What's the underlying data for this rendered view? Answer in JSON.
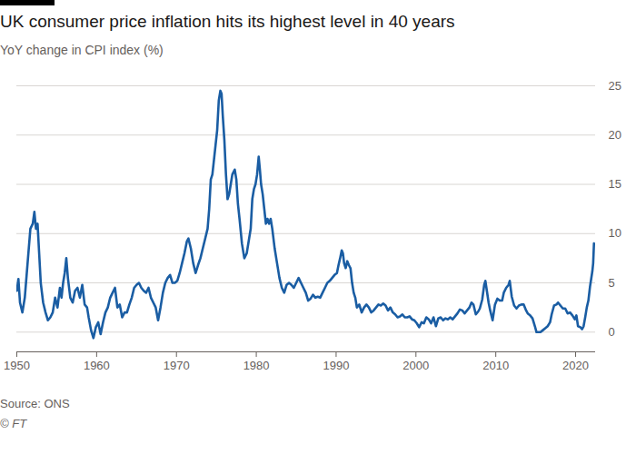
{
  "chart_data": {
    "type": "line",
    "title": "UK consumer price inflation hits its highest level in 40 years",
    "subtitle": "YoY change in CPI index (%)",
    "source": "Source: ONS",
    "credit": "© FT",
    "color": "#1a5da3",
    "grid": true,
    "xlim": [
      1950,
      2022.5
    ],
    "xticks": [
      1950,
      1960,
      1970,
      1980,
      1990,
      2000,
      2010,
      2020
    ],
    "ylim": [
      -2,
      25
    ],
    "yticks": [
      0,
      5,
      10,
      15,
      20,
      25
    ],
    "x": [
      1950,
      1950.2,
      1950.4,
      1950.7,
      1951.0,
      1951.4,
      1951.7,
      1952.0,
      1952.2,
      1952.4,
      1952.6,
      1952.8,
      1953.0,
      1953.3,
      1953.6,
      1953.9,
      1954.2,
      1954.5,
      1954.8,
      1955.1,
      1955.4,
      1955.6,
      1955.8,
      1956.0,
      1956.2,
      1956.4,
      1956.7,
      1957.0,
      1957.3,
      1957.6,
      1957.9,
      1958.2,
      1958.5,
      1958.8,
      1959.0,
      1959.3,
      1959.6,
      1959.9,
      1960.2,
      1960.5,
      1960.8,
      1961.1,
      1961.4,
      1961.7,
      1962.0,
      1962.3,
      1962.6,
      1962.9,
      1963.2,
      1963.5,
      1963.8,
      1964.1,
      1964.4,
      1964.7,
      1965.0,
      1965.3,
      1965.6,
      1965.9,
      1966.2,
      1966.5,
      1966.8,
      1967.1,
      1967.4,
      1967.7,
      1968.0,
      1968.3,
      1968.6,
      1968.9,
      1969.2,
      1969.5,
      1969.8,
      1970.1,
      1970.4,
      1970.7,
      1971.0,
      1971.3,
      1971.5,
      1971.8,
      1972.1,
      1972.4,
      1972.7,
      1973.0,
      1973.3,
      1973.6,
      1973.9,
      1974.1,
      1974.3,
      1974.5,
      1974.7,
      1974.9,
      1975.1,
      1975.3,
      1975.5,
      1975.65,
      1975.8,
      1976.0,
      1976.2,
      1976.4,
      1976.6,
      1976.8,
      1977.0,
      1977.3,
      1977.5,
      1977.7,
      1977.9,
      1978.2,
      1978.5,
      1978.8,
      1979.1,
      1979.3,
      1979.5,
      1979.7,
      1979.9,
      1980.1,
      1980.3,
      1980.45,
      1980.6,
      1980.8,
      1981.0,
      1981.2,
      1981.4,
      1981.6,
      1981.8,
      1982.0,
      1982.3,
      1982.6,
      1982.9,
      1983.2,
      1983.5,
      1983.8,
      1984.1,
      1984.4,
      1984.7,
      1985.0,
      1985.3,
      1985.6,
      1985.9,
      1986.2,
      1986.5,
      1986.8,
      1987.1,
      1987.4,
      1987.7,
      1988.0,
      1988.3,
      1988.6,
      1988.9,
      1989.2,
      1989.5,
      1989.8,
      1990.1,
      1990.3,
      1990.5,
      1990.7,
      1990.85,
      1991.0,
      1991.2,
      1991.4,
      1991.6,
      1991.8,
      1992.0,
      1992.2,
      1992.4,
      1992.6,
      1992.9,
      1993.2,
      1993.5,
      1993.8,
      1994.1,
      1994.4,
      1994.7,
      1995.0,
      1995.3,
      1995.6,
      1995.9,
      1996.2,
      1996.5,
      1996.8,
      1997.1,
      1997.4,
      1997.7,
      1998.0,
      1998.3,
      1998.6,
      1998.9,
      1999.2,
      1999.5,
      1999.8,
      2000.1,
      2000.4,
      2000.7,
      2001.0,
      2001.3,
      2001.6,
      2001.9,
      2002.2,
      2002.5,
      2002.8,
      2003.1,
      2003.4,
      2003.7,
      2004.0,
      2004.3,
      2004.6,
      2004.9,
      2005.2,
      2005.5,
      2005.8,
      2006.1,
      2006.4,
      2006.7,
      2006.95,
      2007.2,
      2007.5,
      2007.8,
      2008.0,
      2008.3,
      2008.55,
      2008.7,
      2008.9,
      2009.1,
      2009.3,
      2009.6,
      2009.9,
      2010.2,
      2010.5,
      2010.8,
      2011.0,
      2011.3,
      2011.6,
      2011.75,
      2012.0,
      2012.3,
      2012.6,
      2012.9,
      2013.2,
      2013.5,
      2013.8,
      2014.0,
      2014.3,
      2014.6,
      2014.9,
      2015.1,
      2015.3,
      2015.6,
      2015.9,
      2016.2,
      2016.5,
      2016.8,
      2017.0,
      2017.3,
      2017.6,
      2017.8,
      2018.1,
      2018.4,
      2018.7,
      2019.0,
      2019.3,
      2019.6,
      2019.9,
      2020.1,
      2020.3,
      2020.6,
      2020.8,
      2021.0,
      2021.2,
      2021.4,
      2021.6,
      2021.8,
      2021.95,
      2022.1,
      2022.2,
      2022.3
    ],
    "values": [
      4.2,
      5.4,
      3.0,
      2.0,
      3.5,
      7.5,
      10.5,
      11.0,
      12.2,
      10.5,
      11.0,
      8.0,
      5.0,
      3.0,
      2.0,
      1.2,
      1.5,
      2.0,
      3.5,
      2.5,
      4.5,
      3.5,
      5.0,
      6.0,
      7.5,
      5.5,
      3.5,
      3.0,
      4.2,
      4.5,
      3.5,
      4.8,
      2.8,
      2.5,
      1.5,
      0.2,
      -0.6,
      0.5,
      1.0,
      -0.2,
      1.0,
      2.0,
      2.5,
      3.5,
      4.0,
      4.5,
      2.5,
      2.8,
      1.5,
      2.0,
      2.0,
      2.8,
      3.5,
      4.5,
      4.8,
      5.0,
      4.5,
      4.2,
      4.0,
      4.5,
      3.5,
      3.0,
      2.5,
      1.2,
      2.5,
      4.0,
      5.0,
      5.5,
      5.8,
      5.0,
      5.0,
      5.2,
      6.0,
      7.0,
      8.0,
      9.2,
      9.5,
      8.5,
      7.0,
      6.0,
      6.8,
      7.5,
      8.5,
      9.5,
      10.5,
      12.5,
      15.5,
      16.0,
      17.5,
      19.0,
      20.5,
      23.5,
      24.5,
      24.2,
      22.0,
      19.5,
      16.0,
      13.5,
      14.0,
      15.0,
      16.0,
      16.5,
      15.5,
      13.0,
      11.5,
      9.0,
      7.5,
      8.0,
      9.5,
      10.5,
      13.5,
      14.5,
      15.0,
      16.0,
      17.8,
      16.5,
      15.0,
      14.0,
      12.5,
      11.0,
      11.5,
      11.0,
      11.5,
      10.5,
      8.5,
      7.0,
      5.5,
      4.5,
      4.0,
      4.8,
      5.0,
      4.8,
      4.5,
      5.0,
      5.5,
      5.0,
      4.5,
      4.0,
      3.2,
      3.4,
      3.8,
      3.5,
      3.6,
      3.5,
      4.0,
      4.5,
      5.0,
      5.2,
      5.5,
      5.8,
      6.0,
      6.8,
      7.5,
      8.3,
      8.0,
      7.0,
      6.5,
      7.2,
      6.8,
      6.5,
      5.0,
      4.0,
      3.5,
      2.5,
      2.8,
      2.0,
      2.5,
      2.8,
      2.5,
      2.0,
      2.2,
      2.5,
      2.8,
      2.7,
      2.9,
      2.7,
      2.2,
      2.5,
      2.0,
      1.8,
      1.5,
      1.6,
      1.8,
      1.5,
      1.5,
      1.6,
      1.3,
      1.2,
      0.9,
      0.5,
      1.0,
      0.9,
      1.5,
      1.3,
      0.9,
      1.5,
      0.6,
      1.4,
      1.5,
      1.2,
      1.4,
      1.3,
      1.5,
      1.3,
      1.6,
      1.9,
      2.3,
      2.2,
      1.9,
      2.2,
      2.5,
      3.0,
      2.8,
      1.8,
      2.1,
      2.4,
      3.3,
      4.8,
      5.2,
      4.1,
      3.0,
      2.2,
      1.2,
      2.8,
      3.4,
      3.2,
      3.2,
      4.0,
      4.5,
      4.8,
      5.2,
      3.6,
      2.7,
      2.4,
      2.7,
      2.8,
      2.8,
      2.2,
      1.9,
      1.7,
      1.4,
      0.6,
      0.0,
      0.0,
      0.0,
      0.2,
      0.4,
      0.6,
      1.0,
      1.8,
      2.7,
      2.8,
      3.0,
      2.7,
      2.4,
      2.4,
      1.9,
      2.0,
      1.7,
      1.3,
      1.7,
      0.6,
      0.5,
      0.3,
      0.6,
      1.5,
      2.5,
      3.2,
      4.6,
      5.4,
      6.2,
      7.0,
      9.0
    ]
  }
}
